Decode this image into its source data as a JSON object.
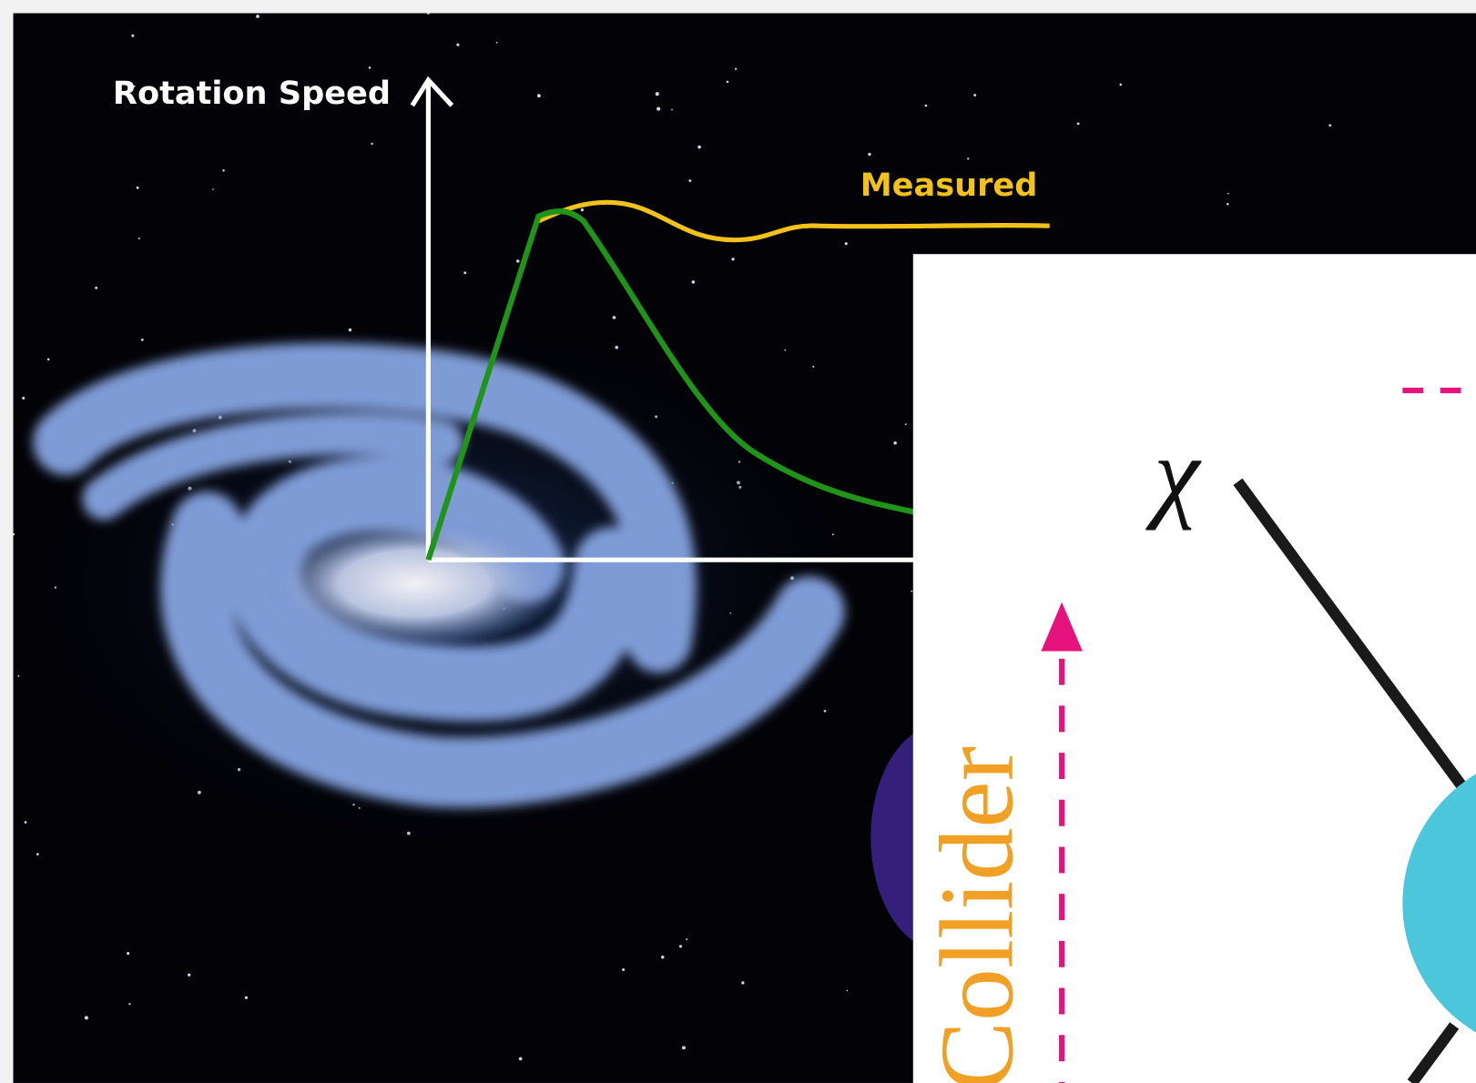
{
  "galaxy_panel": {
    "y_axis_label": "Rotation Speed",
    "curve_label": "Measured"
  },
  "feynman_panel": {
    "particle_label": "χ",
    "side_label": "Collider"
  }
}
